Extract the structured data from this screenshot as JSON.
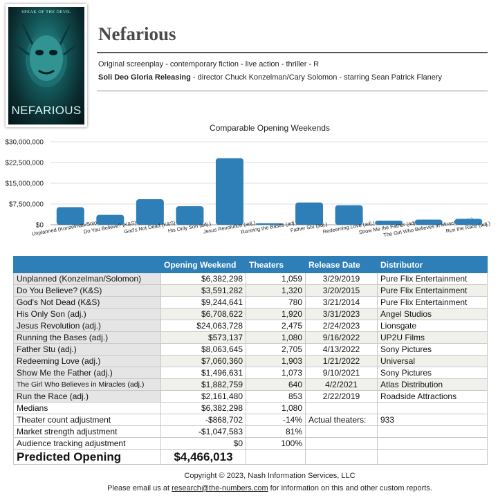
{
  "poster": {
    "tagline": "SPEAK OF THE DEVIL",
    "title_text": "NEFARIOUS"
  },
  "movie": {
    "title": "Nefarious",
    "meta_line": "Original screenplay - contemporary fiction - live action - thriller - R",
    "distributor": "Soli Deo Gloria Releasing",
    "credits": " - director Chuck Konzelman/Cary Solomon - starring Sean Patrick Flanery"
  },
  "chart_data": {
    "type": "bar",
    "title": "Comparable Opening Weekends",
    "categories": [
      "Unplanned (Konzelman/Solomon)",
      "Do You Believe? (K&S)",
      "God's Not Dead (K&S)",
      "His Only Son (adj.)",
      "Jesus Revolution (adj.)",
      "Running the Bases (adj.)",
      "Father Stu (adj.)",
      "Redeeming Love (adj.)",
      "Show Me the Father (adj.)",
      "The Girl Who Believes in Miracles (adj.)",
      "Run the Race (adj.)"
    ],
    "values": [
      6382298,
      3591282,
      9244641,
      6708622,
      24063728,
      573137,
      8063645,
      7060360,
      1496631,
      1882759,
      2161480
    ],
    "ylim": [
      0,
      30000000
    ],
    "yticks": [
      0,
      7500000,
      15000000,
      22500000,
      30000000
    ],
    "ytick_labels": [
      "$0",
      "$7,500,000",
      "$15,000,000",
      "$22,500,000",
      "$30,000,000"
    ],
    "bar_color": "#2e7fb8",
    "grid": true
  },
  "table": {
    "headers": [
      "",
      "Opening Weekend",
      "Theaters",
      "Release Date",
      "Distributor"
    ],
    "rows": [
      [
        "Unplanned (Konzelman/Solomon)",
        "$6,382,298",
        "1,059",
        "3/29/2019",
        "Pure Flix Entertainment"
      ],
      [
        "Do You Believe? (K&S)",
        "$3,591,282",
        "1,320",
        "3/20/2015",
        "Pure Flix Entertainment"
      ],
      [
        "God's Not Dead (K&S)",
        "$9,244,641",
        "780",
        "3/21/2014",
        "Pure Flix Entertainment"
      ],
      [
        "His Only Son (adj.)",
        "$6,708,622",
        "1,920",
        "3/31/2023",
        "Angel Studios"
      ],
      [
        "Jesus Revolution (adj.)",
        "$24,063,728",
        "2,475",
        "2/24/2023",
        "Lionsgate"
      ],
      [
        "Running the Bases (adj.)",
        "$573,137",
        "1,080",
        "9/16/2022",
        "UP2U Films"
      ],
      [
        "Father Stu (adj.)",
        "$8,063,645",
        "2,705",
        "4/13/2022",
        "Sony Pictures"
      ],
      [
        "Redeeming Love (adj.)",
        "$7,060,360",
        "1,903",
        "1/21/2022",
        "Universal"
      ],
      [
        "Show Me the Father (adj.)",
        "$1,496,631",
        "1,073",
        "9/10/2021",
        "Sony Pictures"
      ],
      [
        "The Girl Who Believes in Miracles (adj.)",
        "$1,882,759",
        "640",
        "4/2/2021",
        "Atlas Distribution"
      ],
      [
        "Run the Race (adj.)",
        "$2,161,480",
        "853",
        "2/22/2019",
        "Roadside Attractions"
      ]
    ],
    "medians": {
      "label": "Medians",
      "opening": "$6,382,298",
      "theaters": "1,080"
    },
    "theater_adj": {
      "label": "Theater count adjustment",
      "value": "-$868,702",
      "pct": "-14%",
      "actual_label": "Actual theaters:",
      "actual_value": "933"
    },
    "market_adj": {
      "label": "Market strength adjustment",
      "value": "-$1,047,583",
      "pct": "81%"
    },
    "audience_adj": {
      "label": "Audience tracking adjustment",
      "value": "$0",
      "pct": "100%"
    },
    "predicted": {
      "label": "Predicted Opening",
      "value": "$4,466,013"
    }
  },
  "footer": {
    "copyright": "Copyright © 2023, Nash Information Services, LLC",
    "email_prefix": "Please email us at ",
    "email": "research@the-numbers.com",
    "email_suffix": " for information on this and other custom reports."
  }
}
